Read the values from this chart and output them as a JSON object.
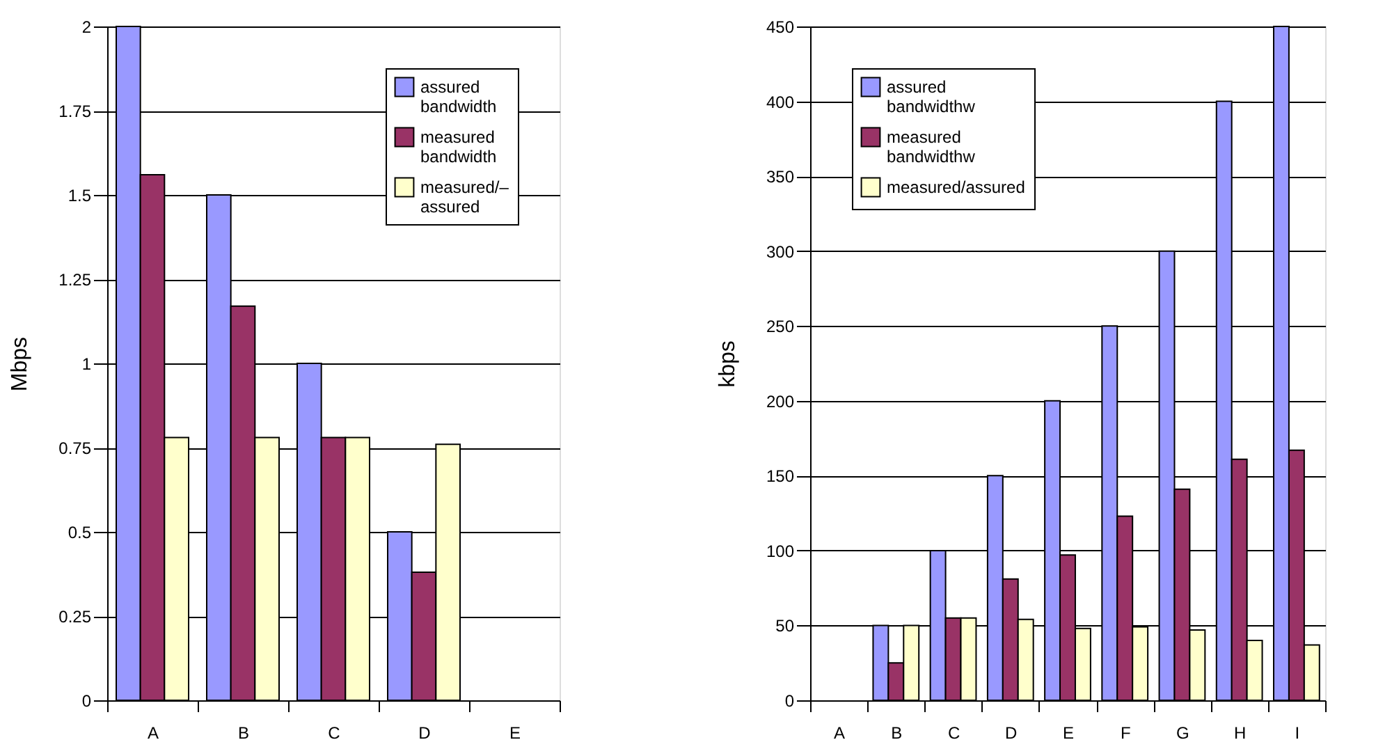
{
  "chart_data": [
    {
      "type": "bar",
      "ylabel": "Mbps",
      "categories": [
        "A",
        "B",
        "C",
        "D",
        "E"
      ],
      "ylim": [
        0,
        2
      ],
      "yticks": [
        0,
        0.25,
        0.5,
        0.75,
        1,
        1.25,
        1.5,
        1.75,
        2
      ],
      "grid": "y",
      "legend": "top right",
      "series": [
        {
          "name": "assured bandwidth",
          "color": "#9999ff",
          "values": [
            2,
            1.5,
            1.0,
            0.5,
            0
          ]
        },
        {
          "name": "measured bandwidth",
          "color": "#993366",
          "values": [
            1.56,
            1.17,
            0.78,
            0.38,
            0
          ]
        },
        {
          "name": "measured/– assured",
          "color": "#ffffcc",
          "values": [
            0.78,
            0.78,
            0.78,
            0.76,
            0
          ]
        }
      ]
    },
    {
      "type": "bar",
      "ylabel": "kbps",
      "categories": [
        "A",
        "B",
        "C",
        "D",
        "E",
        "F",
        "G",
        "H",
        "I"
      ],
      "ylim": [
        0,
        450
      ],
      "yticks": [
        0,
        50,
        100,
        150,
        200,
        250,
        300,
        350,
        400,
        450
      ],
      "grid": "y",
      "legend": "top left",
      "series": [
        {
          "name": "assured bandwidthw",
          "color": "#9999ff",
          "values": [
            0,
            50,
            100,
            150,
            200,
            250,
            300,
            400,
            450
          ]
        },
        {
          "name": "measured bandwidthw",
          "color": "#993366",
          "values": [
            0,
            25,
            55,
            81,
            97,
            123,
            141,
            161,
            167
          ]
        },
        {
          "name": "measured/assured",
          "color": "#ffffcc",
          "values": [
            0,
            50,
            55,
            54,
            48,
            49,
            47,
            40,
            37
          ]
        }
      ]
    }
  ]
}
